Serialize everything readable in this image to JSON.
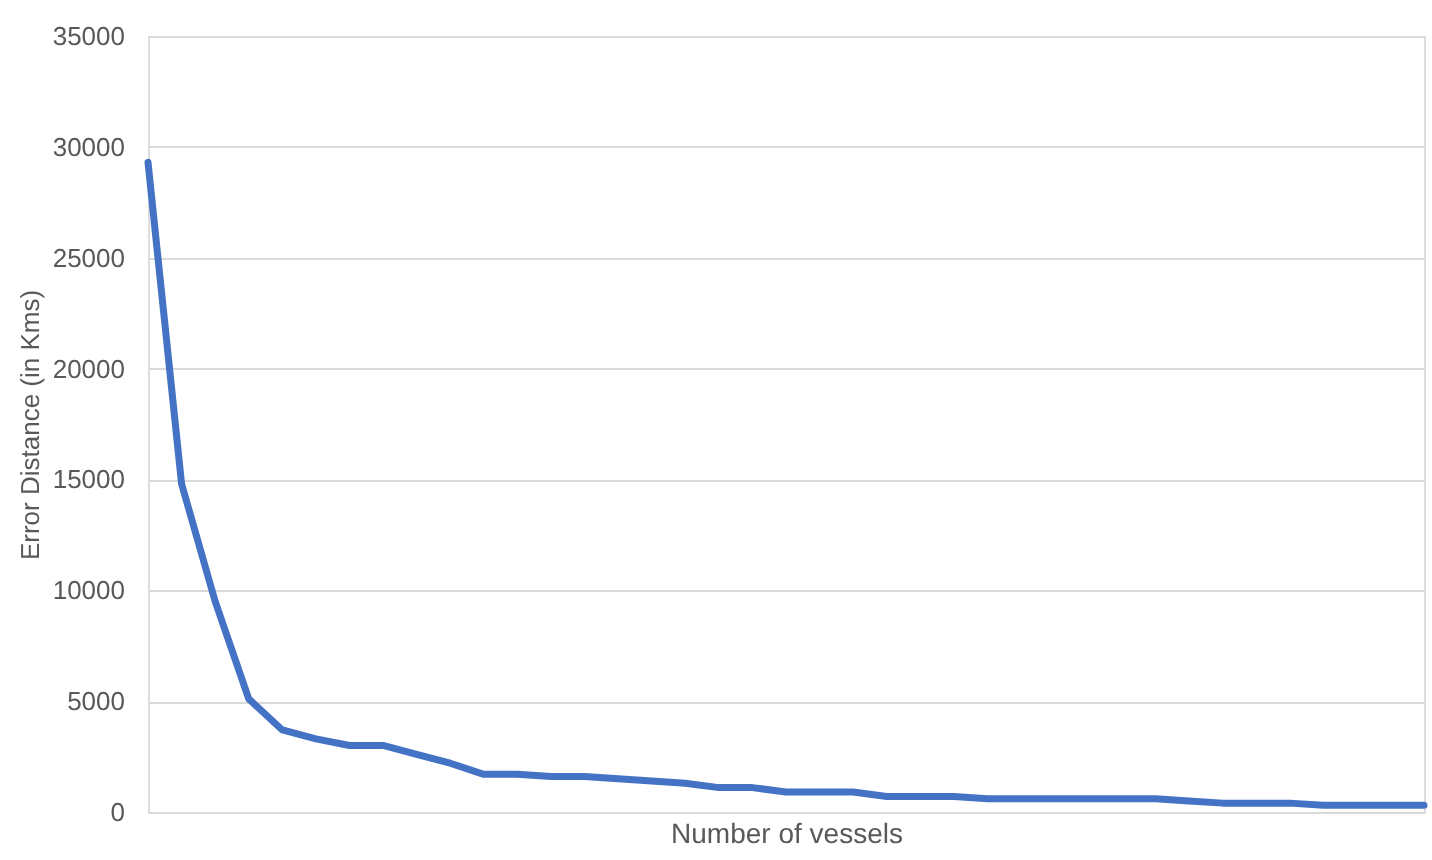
{
  "chart_data": {
    "type": "line",
    "xlabel": "Number of vessels",
    "ylabel": "Error Distance (in Kms)",
    "categories": [
      null,
      null,
      null,
      null,
      null,
      null,
      null,
      null,
      null,
      null,
      null,
      null,
      null,
      null,
      null,
      null,
      null,
      null,
      null,
      null,
      null,
      null,
      null,
      null,
      null,
      null,
      null,
      null,
      null,
      null,
      null,
      null,
      null,
      null,
      null,
      null,
      null,
      null,
      null
    ],
    "series": [
      {
        "color": "#4472c4",
        "values": [
          29300,
          14800,
          9500,
          5100,
          3700,
          3300,
          3000,
          3000,
          2600,
          2200,
          1700,
          1700,
          1600,
          1600,
          1500,
          1400,
          1300,
          1100,
          1100,
          900,
          900,
          900,
          700,
          700,
          700,
          600,
          600,
          600,
          600,
          600,
          600,
          500,
          400,
          400,
          400,
          300,
          300,
          300,
          300
        ]
      }
    ],
    "ylim": [
      0,
      35000
    ],
    "yticks": [
      0,
      5000,
      10000,
      15000,
      20000,
      25000,
      30000,
      35000
    ],
    "grid": "y",
    "marker": "none",
    "line_style": "solid",
    "tick_labels": "y"
  }
}
